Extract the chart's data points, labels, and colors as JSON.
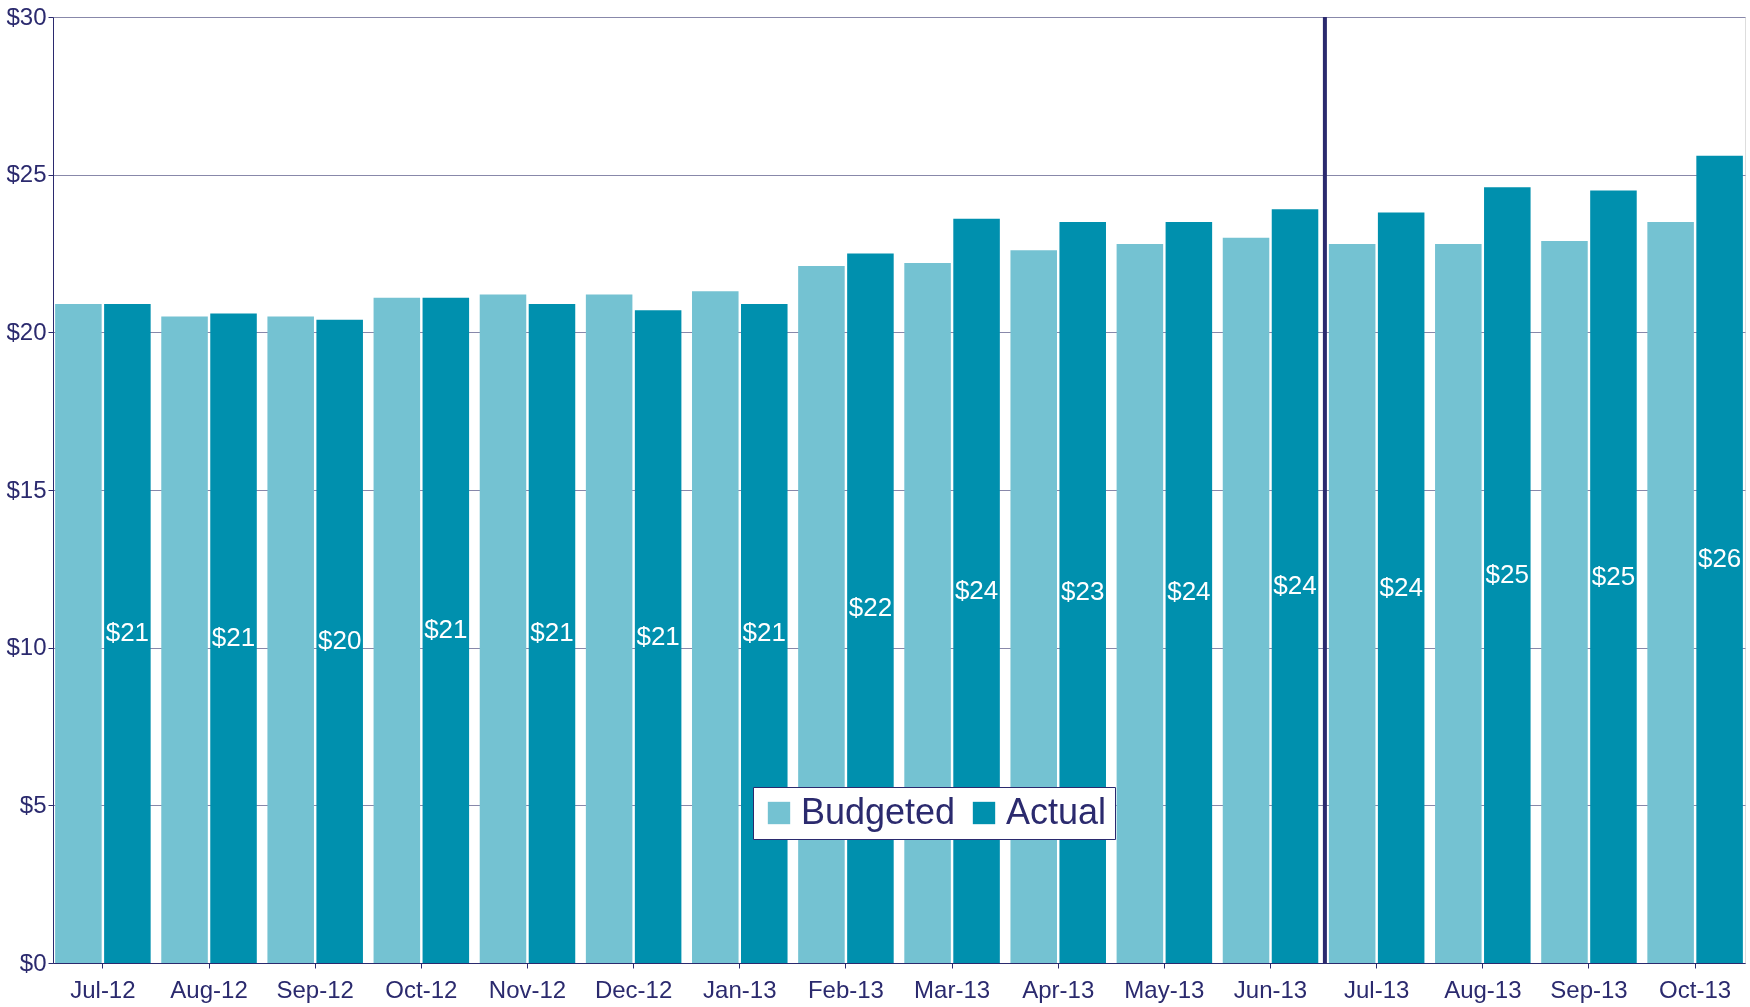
{
  "chart_data": {
    "type": "bar",
    "categories": [
      "Jul-12",
      "Aug-12",
      "Sep-12",
      "Oct-12",
      "Nov-12",
      "Dec-12",
      "Jan-13",
      "Feb-13",
      "Mar-13",
      "Apr-13",
      "May-13",
      "Jun-13",
      "Jul-13",
      "Aug-13",
      "Sep-13",
      "Oct-13"
    ],
    "series": [
      {
        "name": "Budgeted",
        "color": "#74c2d2",
        "values": [
          20.9,
          20.5,
          20.5,
          21.1,
          21.2,
          21.2,
          21.3,
          22.1,
          22.2,
          22.6,
          22.8,
          23.0,
          22.8,
          22.8,
          22.9,
          23.5
        ]
      },
      {
        "name": "Actual",
        "color": "#0090ae",
        "values": [
          20.9,
          20.6,
          20.4,
          21.1,
          20.9,
          20.7,
          20.9,
          22.5,
          23.6,
          23.5,
          23.5,
          23.9,
          23.8,
          24.6,
          24.5,
          25.6
        ],
        "value_labels": [
          "$21",
          "$21",
          "$20",
          "$21",
          "$21",
          "$21",
          "$21",
          "$22",
          "$24",
          "$23",
          "$24",
          "$24",
          "$24",
          "$25",
          "$25",
          "$26"
        ]
      }
    ],
    "ylim": [
      0,
      30
    ],
    "yticks": [
      {
        "value": 0,
        "label": "$0"
      },
      {
        "value": 5,
        "label": "$5"
      },
      {
        "value": 10,
        "label": "$10"
      },
      {
        "value": 15,
        "label": "$15"
      },
      {
        "value": 20,
        "label": "$20"
      },
      {
        "value": 25,
        "label": "$25"
      },
      {
        "value": 30,
        "label": "$30"
      }
    ],
    "grid": "y",
    "legend": "bottom",
    "ref_lines": [
      {
        "axis": "x",
        "value": "Jul-13",
        "color": "#2b2a6e"
      }
    ]
  }
}
